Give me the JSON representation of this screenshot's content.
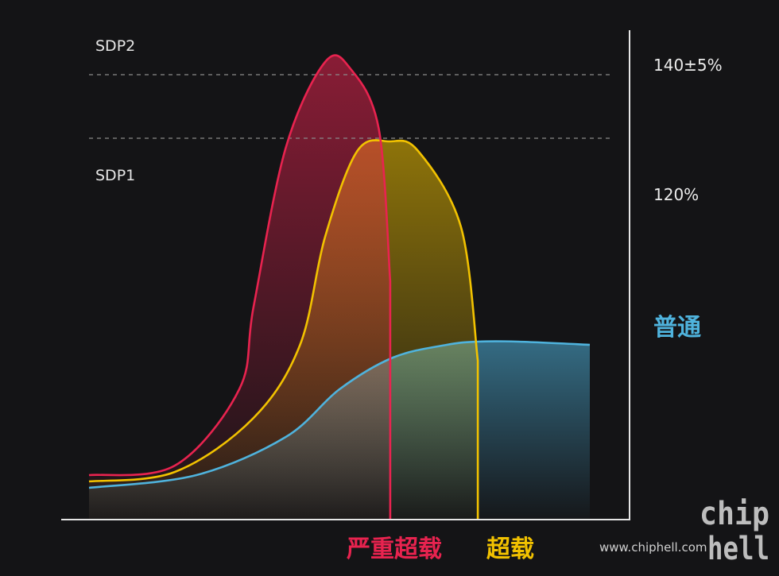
{
  "chart_data": {
    "type": "area",
    "title": "",
    "xlabel": "",
    "ylabel": "",
    "grid": false,
    "ylim": [
      0,
      150
    ],
    "reference_lines": [
      {
        "name": "SDP2",
        "label": "140±5%",
        "value": 140
      },
      {
        "name": "SDP1",
        "label": "120%",
        "value": 120
      }
    ],
    "series": [
      {
        "name": "严重超载",
        "color": "#e8234f",
        "x": [
          0,
          0.24,
          0.42,
          0.46,
          0.55,
          0.66,
          0.73,
          0.81,
          0.842,
          0.842
        ],
        "y": [
          14,
          17,
          41,
          67,
          117,
          144,
          142,
          123,
          75,
          0
        ]
      },
      {
        "name": "超载",
        "color": "#f2c200",
        "x": [
          0,
          0.24,
          0.46,
          0.59,
          0.66,
          0.75,
          0.84,
          0.92,
          1.04,
          1.087,
          1.087
        ],
        "y": [
          12,
          15,
          32,
          55,
          89,
          116,
          119,
          116,
          92,
          50,
          0
        ]
      },
      {
        "name": "普通",
        "color": "#4fb3dd",
        "x": [
          0,
          0.3,
          0.55,
          0.7,
          0.85,
          1.0,
          1.087,
          1.2,
          1.4
        ],
        "y": [
          10,
          14,
          26,
          41,
          51,
          55,
          56,
          56,
          55
        ]
      }
    ]
  },
  "watermark": {
    "logo": "chip hell",
    "url": "www.chiphell.com"
  }
}
